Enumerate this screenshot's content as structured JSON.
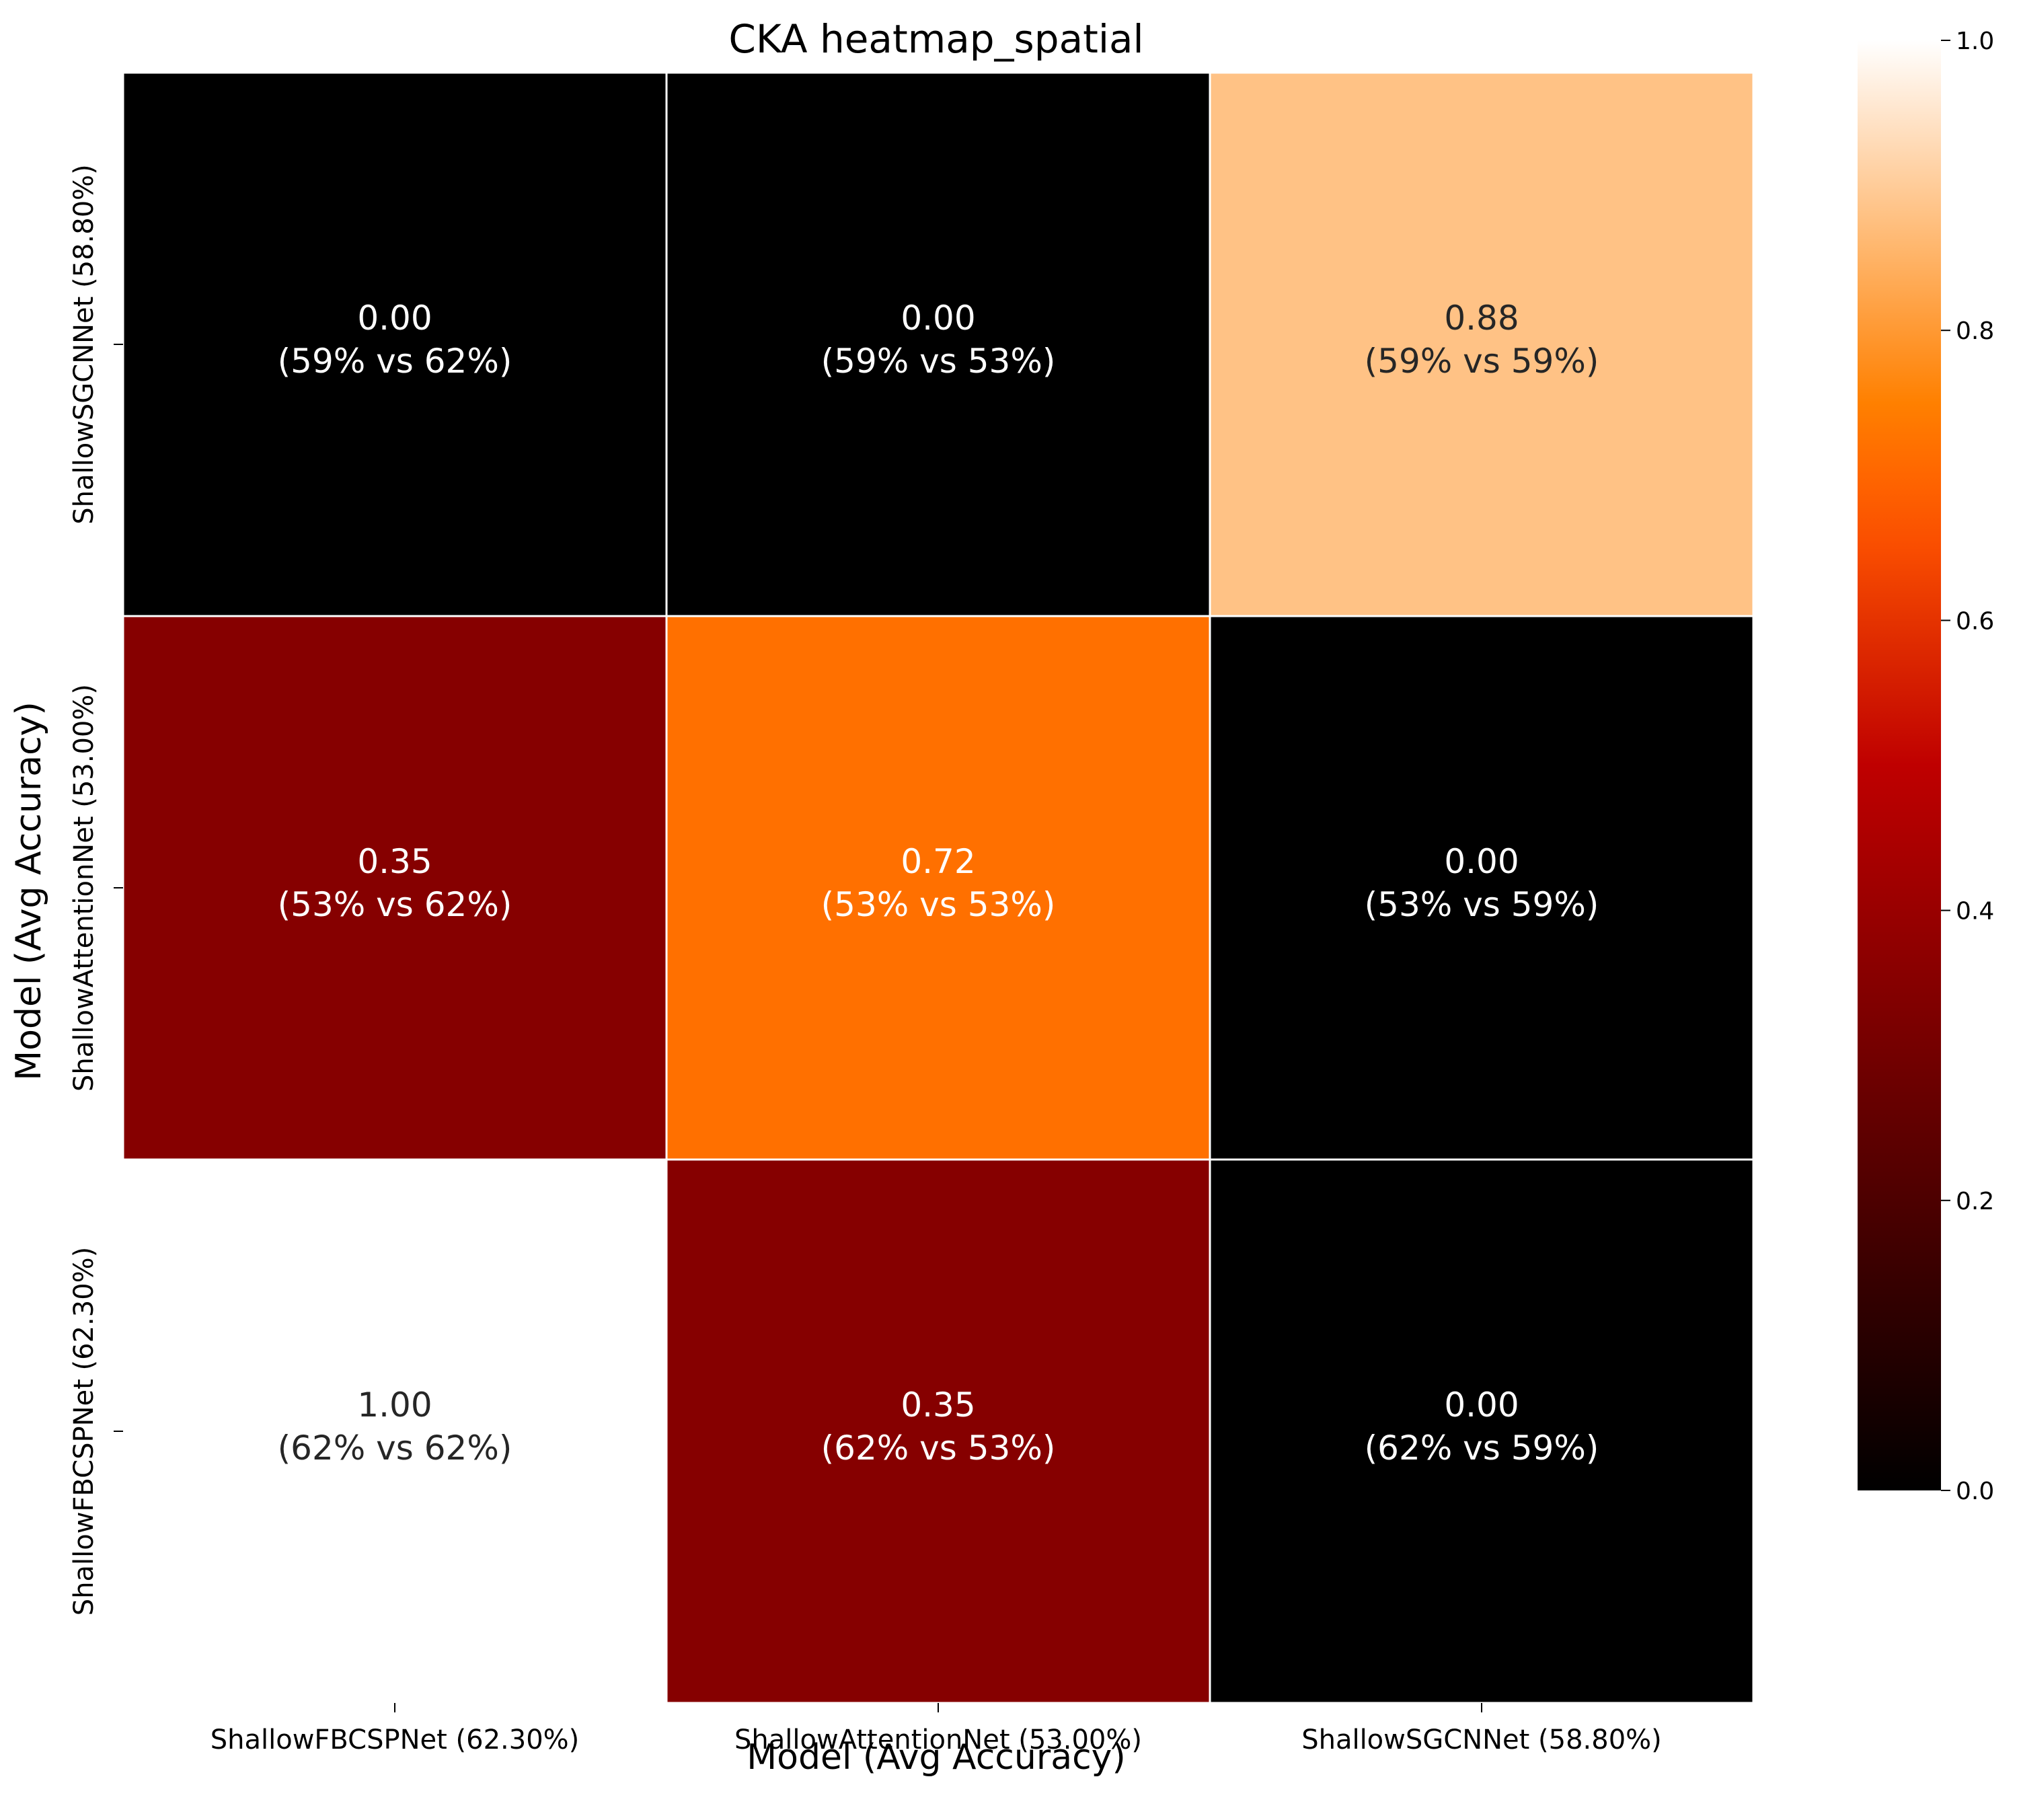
{
  "chart_data": {
    "type": "heatmap",
    "title": "CKA heatmap_spatial",
    "xlabel": "Model (Avg Accuracy)",
    "ylabel": "Model (Avg Accuracy)",
    "x_categories": [
      "ShallowFBCSPNet (62.30%)",
      "ShallowAttentionNet (53.00%)",
      "ShallowSGCNNet (58.80%)"
    ],
    "y_categories": [
      "ShallowSGCNNet (58.80%)",
      "ShallowAttentionNet (53.00%)",
      "ShallowFBCSPNet (62.30%)"
    ],
    "values": [
      [
        0.0,
        0.0,
        0.88
      ],
      [
        0.35,
        0.72,
        0.0
      ],
      [
        1.0,
        0.35,
        0.0
      ]
    ],
    "cell_labels": [
      [
        [
          "0.00",
          "(59% vs 62%)"
        ],
        [
          "0.00",
          "(59% vs 53%)"
        ],
        [
          "0.88",
          "(59% vs 59%)"
        ]
      ],
      [
        [
          "0.35",
          "(53% vs 62%)"
        ],
        [
          "0.72",
          "(53% vs 53%)"
        ],
        [
          "0.00",
          "(53% vs 59%)"
        ]
      ],
      [
        [
          "1.00",
          "(62% vs 62%)"
        ],
        [
          "0.35",
          "(62% vs 53%)"
        ],
        [
          "0.00",
          "(62% vs 59%)"
        ]
      ]
    ],
    "colormap": "gist_heat",
    "colorbar": {
      "range": [
        0.0,
        1.0
      ],
      "ticks": [
        0.0,
        0.2,
        0.4,
        0.6,
        0.8,
        1.0
      ],
      "tick_labels": [
        "0.0",
        "0.2",
        "0.4",
        "0.6",
        "0.8",
        "1.0"
      ]
    },
    "cell_border_color": "#ffffff",
    "grid": false
  }
}
